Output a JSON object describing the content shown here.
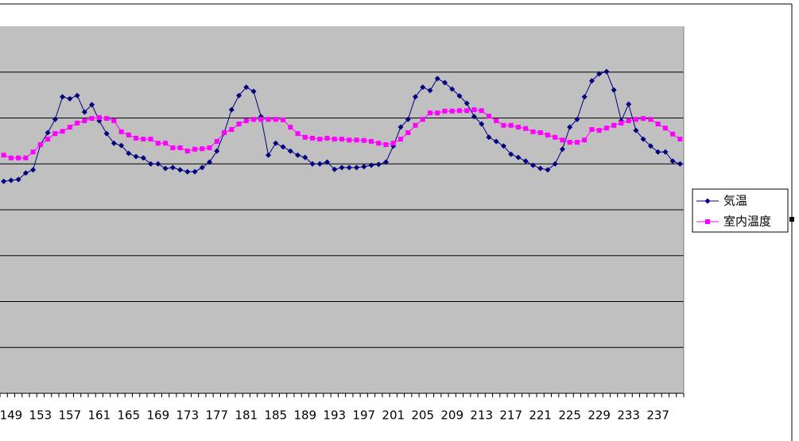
{
  "chart_data": {
    "type": "line",
    "categories": [
      null,
      149,
      null,
      null,
      null,
      153,
      null,
      null,
      null,
      157,
      null,
      null,
      null,
      161,
      null,
      null,
      null,
      165,
      null,
      null,
      null,
      169,
      null,
      null,
      null,
      173,
      null,
      null,
      null,
      177,
      null,
      null,
      null,
      181,
      null,
      null,
      null,
      185,
      null,
      null,
      null,
      189,
      null,
      null,
      null,
      193,
      null,
      null,
      null,
      197,
      null,
      null,
      null,
      201,
      null,
      null,
      null,
      205,
      null,
      null,
      null,
      209,
      null,
      null,
      null,
      213,
      null,
      null,
      null,
      217,
      null,
      null,
      null,
      221,
      null,
      null,
      null,
      225,
      null,
      null,
      null,
      229,
      null,
      null,
      null,
      233,
      null,
      null,
      null,
      237,
      null,
      null,
      null
    ],
    "ylim": [
      0,
      80
    ],
    "ygrid": [
      10,
      20,
      30,
      40,
      50,
      60,
      70
    ],
    "grid": true,
    "plot_background": "#c0c0c0",
    "legend": "right",
    "series": [
      {
        "name": "気温",
        "color": "#000080",
        "marker": "diamond",
        "values": [
          46.2,
          46.4,
          46.6,
          48.0,
          48.7,
          54.2,
          56.8,
          59.7,
          64.6,
          64.2,
          64.9,
          61.3,
          62.9,
          59.4,
          56.6,
          54.5,
          54.0,
          52.3,
          51.6,
          51.3,
          50.0,
          50.0,
          49.0,
          49.2,
          48.7,
          48.3,
          48.3,
          49.2,
          50.4,
          52.8,
          56.8,
          61.8,
          64.9,
          66.7,
          65.8,
          60.3,
          51.9,
          54.5,
          53.7,
          52.8,
          51.9,
          51.4,
          50.0,
          50.0,
          50.4,
          48.8,
          49.2,
          49.2,
          49.2,
          49.4,
          49.7,
          49.9,
          50.4,
          53.9,
          58.0,
          59.7,
          64.6,
          66.7,
          66.0,
          68.6,
          67.7,
          66.3,
          64.8,
          63.2,
          60.3,
          58.7,
          55.8,
          54.9,
          53.9,
          52.1,
          51.4,
          50.6,
          49.7,
          49.0,
          48.7,
          50.0,
          53.2,
          58.0,
          59.7,
          64.6,
          68.1,
          69.6,
          70.1,
          66.1,
          59.4,
          63.0,
          57.3,
          55.4,
          53.9,
          52.6,
          52.6,
          50.6,
          50.0
        ]
      },
      {
        "name": "室内温度",
        "color": "#ff00ff",
        "marker": "square",
        "values": [
          51.9,
          51.3,
          51.3,
          51.3,
          52.6,
          54.2,
          55.4,
          56.6,
          57.1,
          58.0,
          58.9,
          59.4,
          59.9,
          60.1,
          59.9,
          59.4,
          57.0,
          56.3,
          55.6,
          55.4,
          55.4,
          54.5,
          54.5,
          53.5,
          53.5,
          52.8,
          53.2,
          53.3,
          53.5,
          54.9,
          56.8,
          57.5,
          58.7,
          59.4,
          59.7,
          59.7,
          59.7,
          59.7,
          59.6,
          58.0,
          56.6,
          55.8,
          55.6,
          55.4,
          55.6,
          55.4,
          55.4,
          55.2,
          55.2,
          55.1,
          54.9,
          54.5,
          54.2,
          54.5,
          55.4,
          56.8,
          58.4,
          59.7,
          61.1,
          61.1,
          61.5,
          61.5,
          61.6,
          61.6,
          61.8,
          61.6,
          60.4,
          59.4,
          58.4,
          58.4,
          58.0,
          57.7,
          57.0,
          56.8,
          56.3,
          55.8,
          55.2,
          54.7,
          54.7,
          55.2,
          57.5,
          57.3,
          57.8,
          58.4,
          58.9,
          59.4,
          59.7,
          59.9,
          59.7,
          58.7,
          57.8,
          56.5,
          55.4
        ]
      }
    ]
  }
}
